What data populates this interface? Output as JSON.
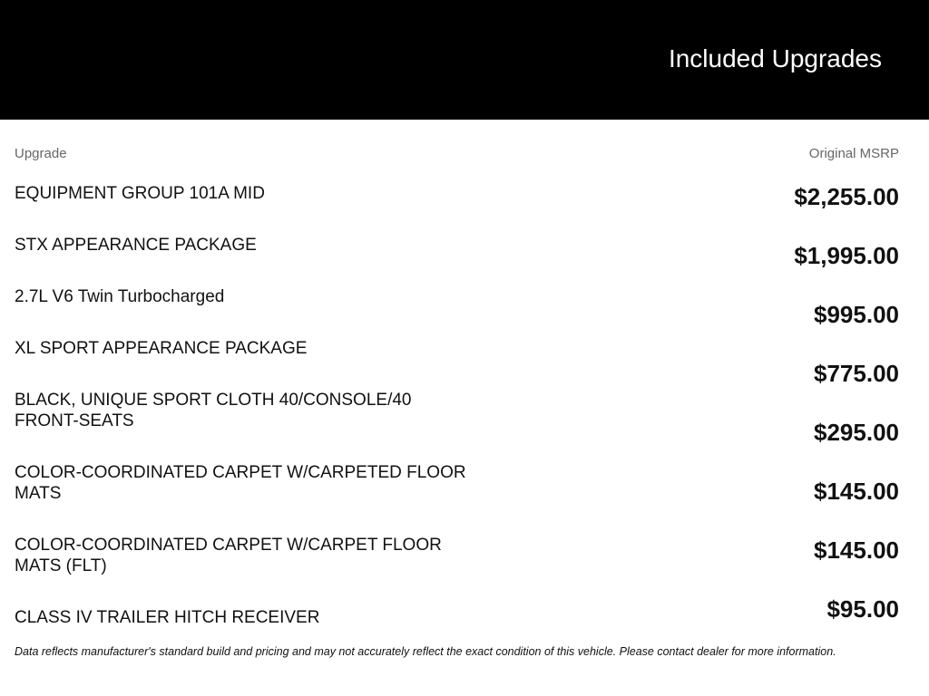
{
  "header": {
    "title": "Included Upgrades"
  },
  "columns": {
    "upgrade": "Upgrade",
    "msrp": "Original MSRP"
  },
  "items": [
    {
      "name": "EQUIPMENT GROUP 101A MID",
      "price": "$2,255.00"
    },
    {
      "name": "STX APPEARANCE PACKAGE",
      "price": "$1,995.00"
    },
    {
      "name": "2.7L V6 Twin Turbocharged",
      "price": "$995.00"
    },
    {
      "name": "XL SPORT APPEARANCE PACKAGE",
      "price": "$775.00"
    },
    {
      "name": "BLACK, UNIQUE SPORT CLOTH 40/CONSOLE/40 FRONT-SEATS",
      "price": "$295.00"
    },
    {
      "name": "COLOR-COORDINATED CARPET W/CARPETED FLOOR MATS",
      "price": "$145.00"
    },
    {
      "name": "COLOR-COORDINATED CARPET W/CARPET FLOOR MATS (FLT)",
      "price": "$145.00"
    },
    {
      "name": "CLASS IV TRAILER HITCH RECEIVER",
      "price": "$95.00"
    }
  ],
  "footer": {
    "note": "Data reflects manufacturer's standard build and pricing and may not accurately reflect the exact condition of this vehicle. Please contact dealer for more information."
  }
}
